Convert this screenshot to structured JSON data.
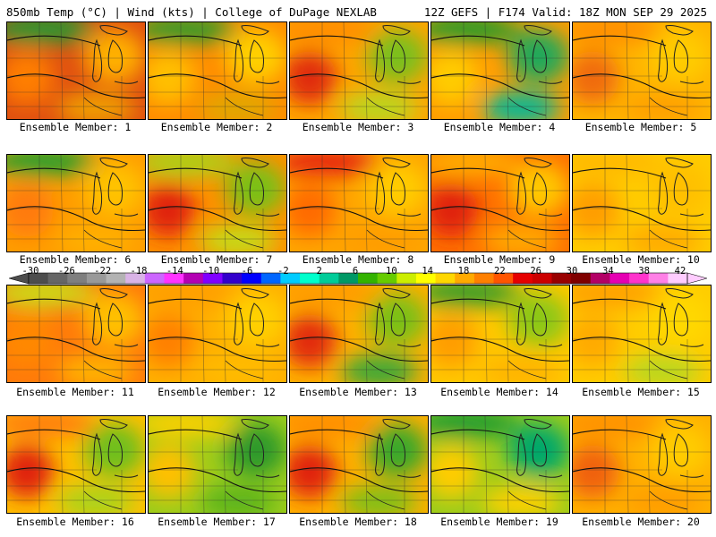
{
  "header": {
    "left": "850mb Temp (°C) | Wind (kts) | College of DuPage NEXLAB",
    "right": "12Z GEFS | F174 Valid: 18Z MON SEP 29 2025"
  },
  "colorbar": {
    "ticks": [
      "-30",
      "-26",
      "-22",
      "-18",
      "-14",
      "-10",
      "-6",
      "-2",
      "2",
      "6",
      "10",
      "14",
      "18",
      "22",
      "26",
      "30",
      "34",
      "38",
      "42"
    ],
    "colors": [
      "#4d4d4d",
      "#666666",
      "#7f7f7f",
      "#999999",
      "#b3b3b3",
      "#d9b3e6",
      "#cc66ff",
      "#ff33ff",
      "#b300b3",
      "#8000ff",
      "#3300cc",
      "#0000ff",
      "#0066ff",
      "#00ccff",
      "#00ffcc",
      "#00cc99",
      "#009966",
      "#33b300",
      "#66cc00",
      "#ccee00",
      "#ffff00",
      "#ffd700",
      "#ffaa00",
      "#ff8000",
      "#ff5500",
      "#e60000",
      "#cc0000",
      "#990000",
      "#800000",
      "#b30066",
      "#e600b3",
      "#ff33cc",
      "#ff80e6",
      "#ffccff"
    ]
  },
  "panels": [
    {
      "label": "Ensemble Member: 1",
      "tones": [
        "#1f9a32",
        "#ff7f00",
        "#e05010",
        "#ffb000",
        "#f0a000"
      ]
    },
    {
      "label": "Ensemble Member: 2",
      "tones": [
        "#2a9a2a",
        "#ffc000",
        "#ff8c00",
        "#ffd000",
        "#e0a800"
      ]
    },
    {
      "label": "Ensemble Member: 3",
      "tones": [
        "#ff8c00",
        "#e02a10",
        "#ffa500",
        "#7cbf1a",
        "#b8d820"
      ]
    },
    {
      "label": "Ensemble Member: 4",
      "tones": [
        "#1f9a2a",
        "#ffcc00",
        "#ff9d00",
        "#22a85a",
        "#00b89a"
      ]
    },
    {
      "label": "Ensemble Member: 5",
      "tones": [
        "#ff8c00",
        "#f06a10",
        "#ffb400",
        "#ffcc00",
        "#ffa000"
      ]
    },
    {
      "label": "Ensemble Member: 6",
      "tones": [
        "#1e9f2f",
        "#ff7a0a",
        "#ff9d00",
        "#ffc200",
        "#ffb000"
      ]
    },
    {
      "label": "Ensemble Member: 7",
      "tones": [
        "#a8d41a",
        "#e02010",
        "#ff9000",
        "#7cc018",
        "#c4dc18"
      ]
    },
    {
      "label": "Ensemble Member: 8",
      "tones": [
        "#e52010",
        "#ff6a00",
        "#ffa500",
        "#ffcc00",
        "#ff9d00"
      ]
    },
    {
      "label": "Ensemble Member: 9",
      "tones": [
        "#ffb000",
        "#e02010",
        "#ff7000",
        "#ffc800",
        "#ffaa00"
      ]
    },
    {
      "label": "Ensemble Member: 10",
      "tones": [
        "#ffb800",
        "#ff9d00",
        "#ffcc00",
        "#ffc000",
        "#ffaa00"
      ]
    },
    {
      "label": "Ensemble Member: 11",
      "tones": [
        "#c9e01a",
        "#ff8800",
        "#ff7a0a",
        "#ffc000",
        "#ffb400"
      ]
    },
    {
      "label": "Ensemble Member: 12",
      "tones": [
        "#ff9d00",
        "#ff8000",
        "#ffb000",
        "#ffd000",
        "#ffbb00"
      ]
    },
    {
      "label": "Ensemble Member: 13",
      "tones": [
        "#ff9a00",
        "#e22a10",
        "#ffb000",
        "#7cc018",
        "#34a83a"
      ]
    },
    {
      "label": "Ensemble Member: 14",
      "tones": [
        "#2e9a2a",
        "#ff9d00",
        "#ffc800",
        "#8cc818",
        "#ffb400"
      ]
    },
    {
      "label": "Ensemble Member: 15",
      "tones": [
        "#ff9d00",
        "#ffaa00",
        "#ffcc00",
        "#ffd800",
        "#b8d820"
      ]
    },
    {
      "label": "Ensemble Member: 16",
      "tones": [
        "#ff7a0a",
        "#e02010",
        "#ffc000",
        "#6fbf1a",
        "#a8d41a"
      ]
    },
    {
      "label": "Ensemble Member: 17",
      "tones": [
        "#ffd000",
        "#ffc000",
        "#9ccc1a",
        "#2e9a2a",
        "#5cb41c"
      ]
    },
    {
      "label": "Ensemble Member: 18",
      "tones": [
        "#ff8c00",
        "#e02010",
        "#ffb000",
        "#3aa82a",
        "#7cc018"
      ]
    },
    {
      "label": "Ensemble Member: 19",
      "tones": [
        "#1f9a32",
        "#ffcc00",
        "#9ccc1a",
        "#00a86a",
        "#ffd000"
      ]
    },
    {
      "label": "Ensemble Member: 20",
      "tones": [
        "#ff9000",
        "#f06010",
        "#ffb000",
        "#ffcc00",
        "#ff9d00"
      ]
    }
  ]
}
